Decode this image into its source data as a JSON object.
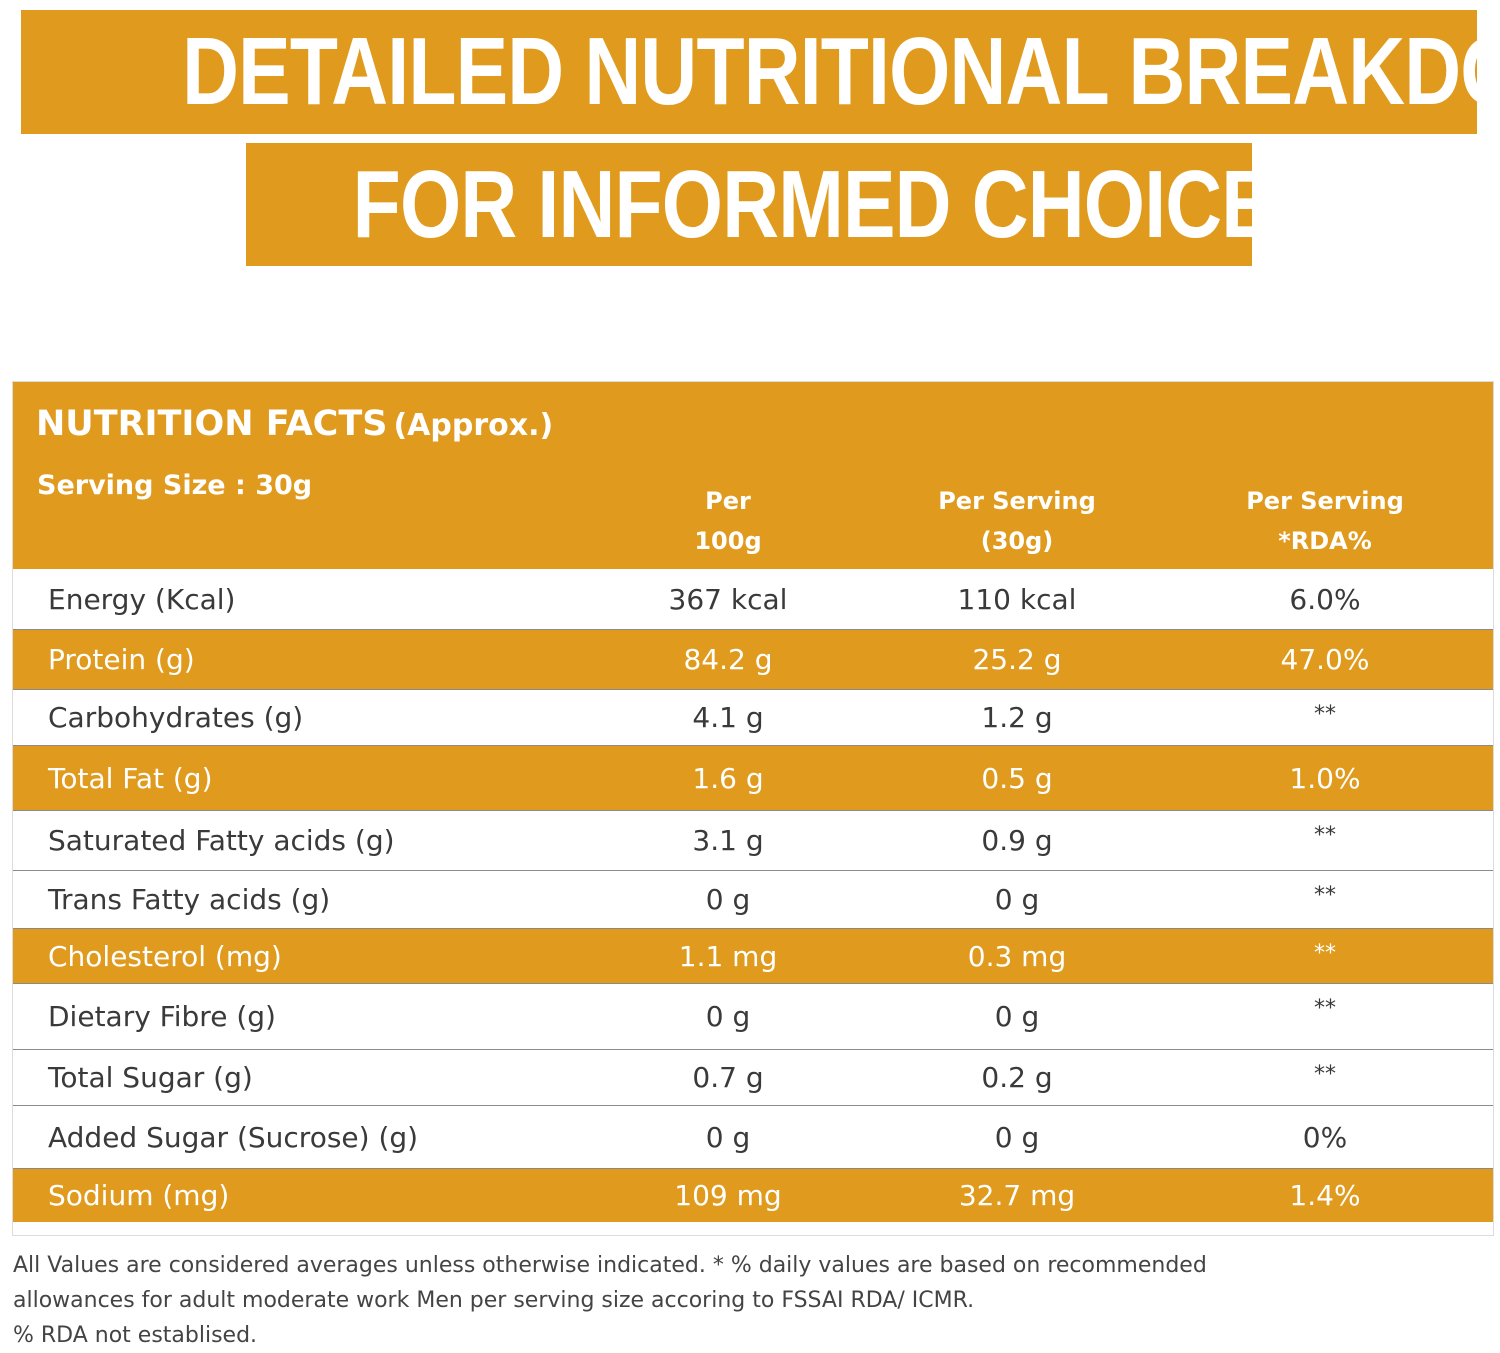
{
  "banner": {
    "line1": "DETAILED NUTRITIONAL BREAKDOWN",
    "line2": "FOR INFORMED CHOICES"
  },
  "facts": {
    "title": "NUTRITION FACTS",
    "title_suffix": "(Approx.)",
    "serving_size": "Serving Size : 30g",
    "columns": {
      "per100_line1": "Per",
      "per100_line2": "100g",
      "serving_line1": "Per Serving",
      "serving_line2": "(30g)",
      "rda_line1": "Per Serving",
      "rda_line2": "*RDA%"
    },
    "rows": [
      {
        "name": "Energy (Kcal)",
        "per100": "367 kcal",
        "serving": "110 kcal",
        "rda": "6.0%"
      },
      {
        "name": "Protein (g)",
        "per100": "84.2 g",
        "serving": "25.2 g",
        "rda": "47.0%"
      },
      {
        "name": "Carbohydrates (g)",
        "per100": "4.1 g",
        "serving": "1.2 g",
        "rda": "**"
      },
      {
        "name": "Total Fat (g)",
        "per100": "1.6 g",
        "serving": "0.5 g",
        "rda": "1.0%"
      },
      {
        "name": "Saturated Fatty acids (g)",
        "per100": "3.1 g",
        "serving": "0.9 g",
        "rda": "**"
      },
      {
        "name": "Trans Fatty acids (g)",
        "per100": "0 g",
        "serving": "0 g",
        "rda": "**"
      },
      {
        "name": "Cholesterol (mg)",
        "per100": "1.1 mg",
        "serving": "0.3 mg",
        "rda": "**"
      },
      {
        "name": "Dietary Fibre (g)",
        "per100": "0 g",
        "serving": "0 g",
        "rda": "**"
      },
      {
        "name": "Total Sugar (g)",
        "per100": "0.7 g",
        "serving": "0.2 g",
        "rda": "**"
      },
      {
        "name": "Added Sugar (Sucrose) (g)",
        "per100": "0 g",
        "serving": "0 g",
        "rda": "0%"
      },
      {
        "name": "Sodium (mg)",
        "per100": "109 mg",
        "serving": "32.7 mg",
        "rda": "1.4%"
      }
    ]
  },
  "footnote": {
    "line1": "All Values are considered averages unless otherwise indicated. * % daily values are based on recommended",
    "line2": "allowances for adult moderate work Men per serving size accoring to FSSAI RDA/ ICMR.",
    "line3": "% RDA not establised."
  },
  "colors": {
    "accent": "#e09b1e",
    "text": "#3a3a3a",
    "background": "#ffffff"
  }
}
